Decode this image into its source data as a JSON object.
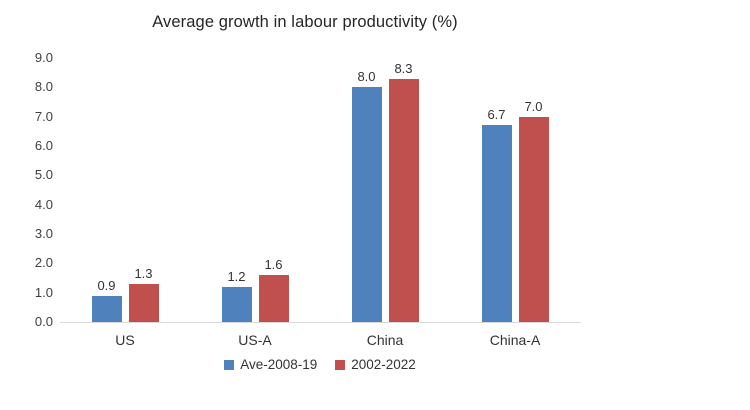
{
  "chart_data": {
    "type": "bar",
    "title": "Average growth in labour productivity (%)",
    "categories": [
      "US",
      "US-A",
      "China",
      "China-A"
    ],
    "series": [
      {
        "name": "Ave-2008-19",
        "color": "#4F81BD",
        "values": [
          0.9,
          1.2,
          8.0,
          6.7
        ]
      },
      {
        "name": "2002-2022",
        "color": "#C0504D",
        "values": [
          1.3,
          1.6,
          8.3,
          7.0
        ]
      }
    ],
    "ylabel": "",
    "xlabel": "",
    "ylim": [
      0,
      9
    ],
    "ytick_labels": [
      "0.0",
      "1.0",
      "2.0",
      "3.0",
      "4.0",
      "5.0",
      "6.0",
      "7.0",
      "8.0",
      "9.0"
    ],
    "grid": false,
    "data_labels": true,
    "legend_position": "bottom"
  },
  "colors": {
    "background": "#ffffff",
    "axis_line": "#d9d9d9",
    "text": "#333333",
    "tick_text": "#404040"
  }
}
